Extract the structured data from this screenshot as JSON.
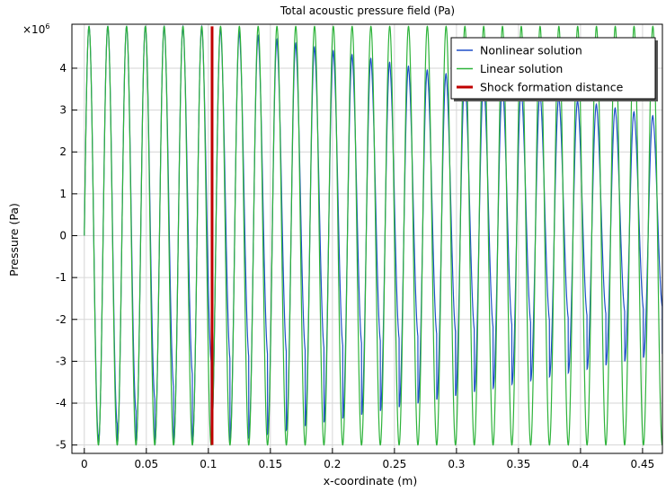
{
  "chart_data": {
    "type": "line",
    "title": "Total acoustic pressure field (Pa)",
    "xlabel": "x-coordinate (m)",
    "ylabel": "Pressure (Pa)",
    "y_multiplier_label": "×10",
    "y_multiplier_exponent": "6",
    "xlim": [
      -0.01,
      0.466
    ],
    "ylim": [
      -5.2,
      5.05
    ],
    "x_ticks": [
      "0",
      "0.05",
      "0.1",
      "0.15",
      "0.2",
      "0.25",
      "0.3",
      "0.35",
      "0.4",
      "0.45"
    ],
    "x_tick_values": [
      0,
      0.05,
      0.1,
      0.15,
      0.2,
      0.25,
      0.3,
      0.35,
      0.4,
      0.45
    ],
    "y_ticks": [
      "4",
      "3",
      "2",
      "1",
      "0",
      "-1",
      "-2",
      "-3",
      "-4",
      "-5"
    ],
    "y_tick_values": [
      4,
      3,
      2,
      1,
      0,
      -1,
      -2,
      -3,
      -4,
      -5
    ],
    "grid": true,
    "legend_position": "top-right",
    "wave": {
      "amplitude": 5,
      "period": 0.01515,
      "x_start": 0,
      "x_end": 0.466
    },
    "shock_formation_distance": 0.103,
    "series": [
      {
        "name": "Nonlinear solution",
        "color": "#1f4fc9",
        "style": "sawtooth-steepening"
      },
      {
        "name": "Linear solution",
        "color": "#2eb33a",
        "style": "sinusoid"
      },
      {
        "name": "Shock formation distance",
        "color": "#c00000",
        "style": "vertical-line"
      }
    ]
  }
}
